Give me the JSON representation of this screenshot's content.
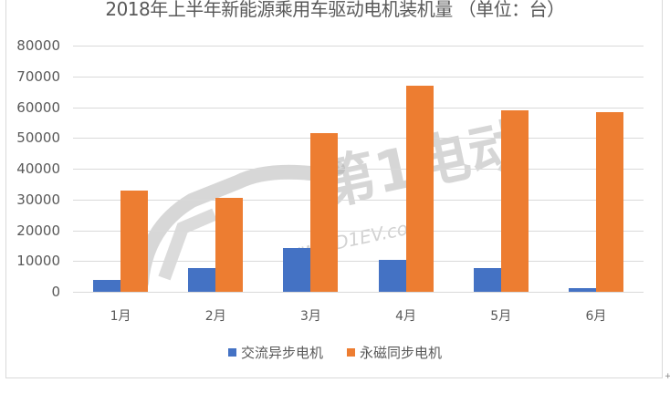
{
  "chart_data": {
    "type": "bar",
    "title": "2018年上半年新能源乘用车驱动电机装机量 （单位：台）",
    "xlabel": "",
    "ylabel": "",
    "categories": [
      "1月",
      "2月",
      "3月",
      "4月",
      "5月",
      "6月"
    ],
    "series": [
      {
        "name": "交流异步电机",
        "color": "#4472c4",
        "values": [
          4000,
          7700,
          14200,
          10400,
          7600,
          1100
        ]
      },
      {
        "name": "永磁同步电机",
        "color": "#ed7d31",
        "values": [
          33000,
          30500,
          51500,
          67000,
          59000,
          58500
        ]
      }
    ],
    "ylim": [
      0,
      80000
    ],
    "yticks": [
      "0",
      "10000",
      "20000",
      "30000",
      "40000",
      "50000",
      "60000",
      "70000",
      "80000"
    ],
    "grid": true,
    "legend_position": "bottom"
  },
  "watermark": {
    "brand": "第1电动",
    "url": "www.D1EV.com"
  },
  "anchor_mark": "+"
}
